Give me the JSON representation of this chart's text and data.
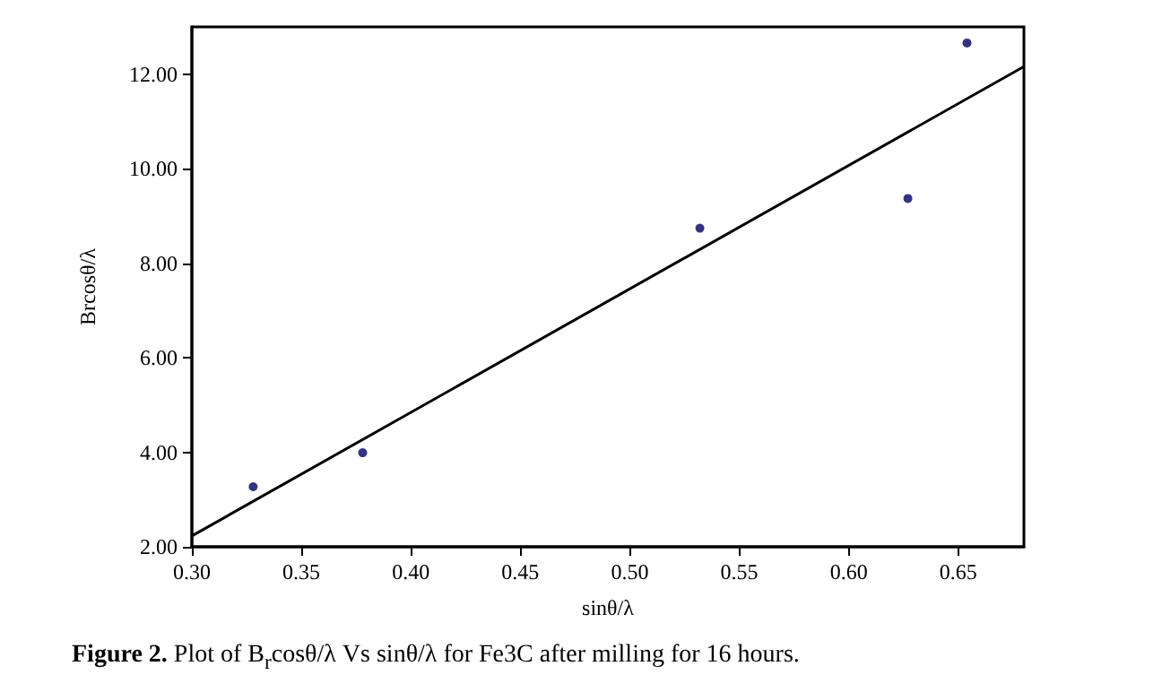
{
  "chart_data": {
    "type": "scatter",
    "xlabel": "sinθ/λ",
    "ylabel": "Brcosθ/λ",
    "annotations": [
      "Figure 2. Plot of B$_{r}$cosθ/λ Vs sinθ/λ for Fe3C after milling for 16 hours."
    ],
    "series": [
      {
        "color": "#000066",
        "marker": "circle",
        "x": [
          0.328,
          0.378,
          0.532,
          0.627,
          0.654
        ],
        "values": [
          3.27,
          3.99,
          8.74,
          9.37,
          12.66
        ]
      },
      {
        "type": "line",
        "color": "#000000",
        "marker": "none",
        "x": [
          0.3,
          0.68
        ],
        "values": [
          2.23,
          12.16
        ]
      }
    ],
    "xlim": [
      0.3,
      0.68
    ],
    "xticks": [
      {
        "value": 0.3,
        "label": "0.30"
      },
      {
        "value": 0.35,
        "label": "0.35"
      },
      {
        "value": 0.4,
        "label": "0.40"
      },
      {
        "value": 0.45,
        "label": "0.45"
      },
      {
        "value": 0.5,
        "label": "0.50"
      },
      {
        "value": 0.55,
        "label": "0.55"
      },
      {
        "value": 0.6,
        "label": "0.60"
      },
      {
        "value": 0.65,
        "label": "0.65"
      }
    ],
    "ylim": [
      2,
      13
    ],
    "yticks": [
      {
        "value": 2,
        "label": "2.00"
      },
      {
        "value": 4,
        "label": "4.00"
      },
      {
        "value": 6,
        "label": "6.00"
      },
      {
        "value": 8,
        "label": "8.00"
      },
      {
        "value": 10,
        "label": "10.00"
      },
      {
        "value": 12,
        "label": "12.00"
      }
    ],
    "grid": false
  }
}
